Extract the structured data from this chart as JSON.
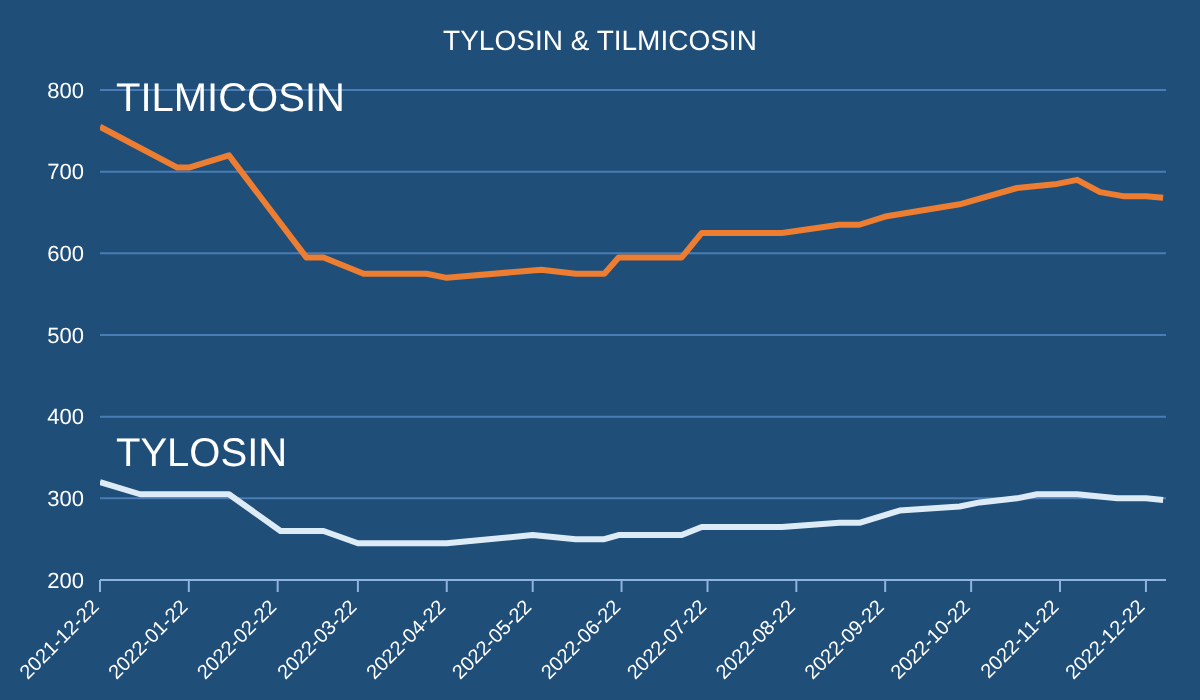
{
  "chart_data": {
    "type": "line",
    "title": "TYLOSIN & TILMICOSIN",
    "series": [
      {
        "name": "TILMICOSIN",
        "color": "#ed7d31",
        "x": [
          "2021-12-22",
          "2022-01-18",
          "2022-01-22",
          "2022-02-05",
          "2022-03-04",
          "2022-03-10",
          "2022-03-24",
          "2022-04-15",
          "2022-04-22",
          "2022-05-25",
          "2022-06-06",
          "2022-06-16",
          "2022-06-21",
          "2022-07-13",
          "2022-07-20",
          "2022-08-17",
          "2022-09-06",
          "2022-09-13",
          "2022-09-22",
          "2022-10-18",
          "2022-11-07",
          "2022-11-21",
          "2022-11-28",
          "2022-12-06",
          "2022-12-14",
          "2022-12-22",
          "2022-12-28"
        ],
        "values": [
          755,
          705,
          705,
          720,
          595,
          595,
          575,
          575,
          570,
          580,
          575,
          575,
          595,
          595,
          625,
          625,
          635,
          635,
          645,
          660,
          680,
          685,
          690,
          675,
          670,
          670,
          668
        ]
      },
      {
        "name": "TYLOSIN",
        "color": "#ddebf7",
        "x": [
          "2021-12-22",
          "2022-01-05",
          "2022-02-05",
          "2022-02-23",
          "2022-03-10",
          "2022-03-22",
          "2022-04-22",
          "2022-05-22",
          "2022-06-06",
          "2022-06-16",
          "2022-06-21",
          "2022-07-13",
          "2022-07-20",
          "2022-08-17",
          "2022-09-06",
          "2022-09-13",
          "2022-09-27",
          "2022-10-18",
          "2022-10-25",
          "2022-11-07",
          "2022-11-14",
          "2022-11-28",
          "2022-12-12",
          "2022-12-22",
          "2022-12-28"
        ],
        "values": [
          320,
          305,
          305,
          260,
          260,
          245,
          245,
          255,
          250,
          250,
          255,
          255,
          265,
          265,
          270,
          270,
          285,
          290,
          295,
          300,
          305,
          305,
          300,
          300,
          298
        ]
      }
    ],
    "xlim": [
      "2021-12-22",
      "2022-12-29"
    ],
    "xticks": [
      "2021-12-22",
      "2022-01-22",
      "2022-02-22",
      "2022-03-22",
      "2022-04-22",
      "2022-05-22",
      "2022-06-22",
      "2022-07-22",
      "2022-08-22",
      "2022-09-22",
      "2022-10-22",
      "2022-11-22",
      "2022-12-22"
    ],
    "ylim": [
      200,
      800
    ],
    "yticks": [
      200,
      300,
      400,
      500,
      600,
      700,
      800
    ],
    "grid": "y",
    "legend": false,
    "marker": "none",
    "line_style": "solid"
  }
}
